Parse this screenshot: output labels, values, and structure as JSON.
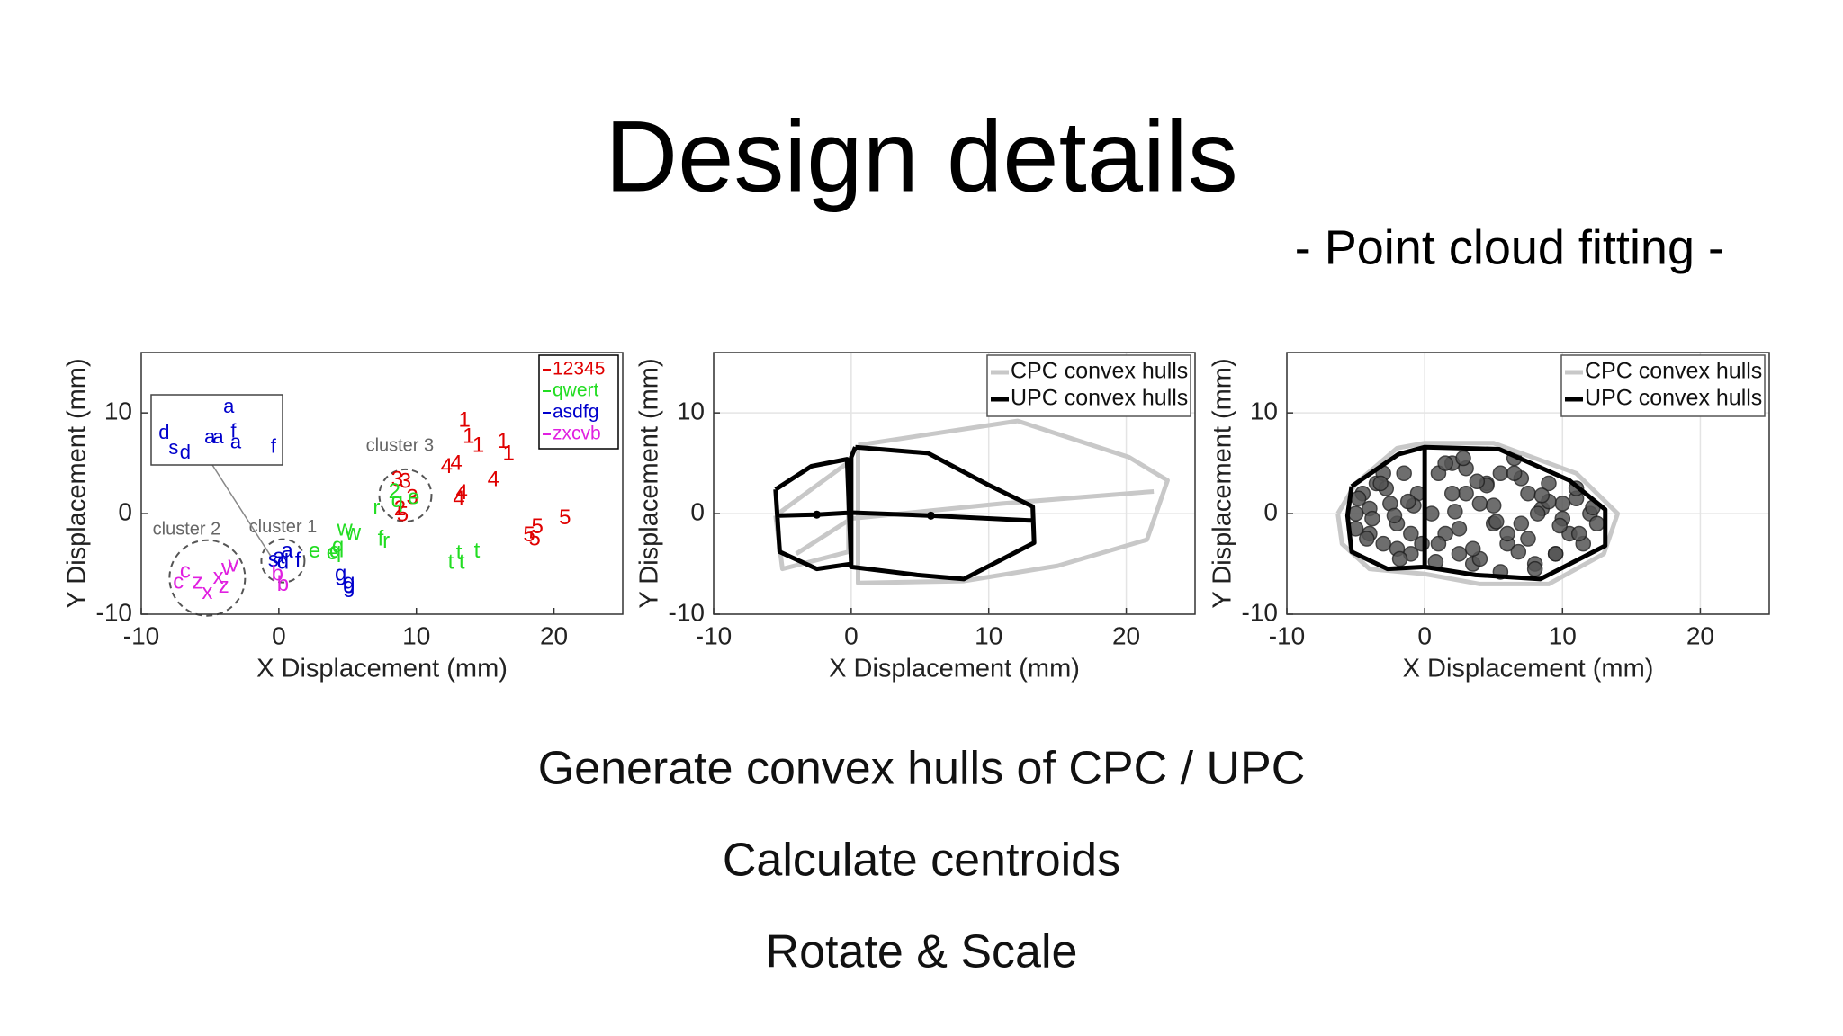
{
  "title": "Design details",
  "subtitle": "- Point cloud fitting -",
  "bullets": [
    "Generate convex hulls of CPC / UPC",
    "Calculate centroids",
    "Rotate & Scale"
  ],
  "chart_data": [
    {
      "type": "text-scatter",
      "xlabel": "X Displacement (mm)",
      "ylabel": "Y Displacement (mm)",
      "xlim": [
        -10,
        25
      ],
      "ylim": [
        -10,
        16
      ],
      "xticks": [
        -10,
        0,
        10,
        20
      ],
      "yticks": [
        -10,
        0,
        10
      ],
      "grid": false,
      "legend": "upper right",
      "series": [
        {
          "name": "12345",
          "color": "#e00000",
          "x": [
            13.5,
            13.8,
            14.5,
            16.3,
            16.7,
            12.2,
            12.9,
            15.6,
            13.3,
            13.1,
            18.8,
            20.8,
            18.2,
            18.6,
            8.6,
            9.2,
            8.8,
            9.7,
            9.0
          ],
          "y": [
            9.2,
            7.6,
            6.7,
            7.1,
            5.9,
            4.6,
            4.9,
            3.3,
            2.0,
            1.4,
            -1.4,
            -0.5,
            -2.2,
            -2.6,
            3.3,
            3.1,
            0.4,
            1.5,
            -0.2
          ],
          "labels": [
            "1",
            "1",
            "1",
            "1",
            "1",
            "4",
            "4",
            "4",
            "4",
            "4",
            "5",
            "5",
            "5",
            "5",
            "3",
            "3",
            "2",
            "3",
            "5"
          ]
        },
        {
          "name": "qwert",
          "color": "#22dd22",
          "x": [
            4.1,
            4.3,
            4.8,
            5.4,
            2.6,
            3.9,
            7.1,
            7.8,
            7.4,
            12.5,
            13.1,
            14.4,
            13.3,
            8.4,
            9.8,
            8.6
          ],
          "y": [
            -3.8,
            -3.3,
            -1.6,
            -2.0,
            -3.8,
            -4.0,
            0.5,
            -2.8,
            -2.6,
            -4.9,
            -4.0,
            -3.8,
            -4.9,
            2.1,
            1.5,
            1.2
          ],
          "labels": [
            "q",
            "q",
            "w",
            "w",
            "e",
            "e",
            "r",
            "r",
            "f",
            "t",
            "t",
            "t",
            "t",
            "2",
            "e",
            "q"
          ]
        },
        {
          "name": "asdfg",
          "color": "#0000cc",
          "x": [
            0.0,
            -0.4,
            0.3,
            1.4,
            4.5,
            5.1,
            5.1,
            0.6
          ],
          "y": [
            -4.4,
            -4.7,
            -4.9,
            -4.8,
            -6.1,
            -6.9,
            -7.3,
            -3.8
          ],
          "labels": [
            "a",
            "s",
            "d",
            "f",
            "g",
            "g",
            "g",
            "a"
          ]
        },
        {
          "name": "zxcvb",
          "color": "#e020e0",
          "x": [
            -6.8,
            -7.3,
            -5.9,
            -4.0,
            -5.2,
            -4.4,
            -3.8,
            -3.3,
            -0.1,
            0.3
          ],
          "y": [
            -5.8,
            -6.9,
            -6.9,
            -7.3,
            -7.9,
            -6.4,
            -5.5,
            -5.2,
            -6.1,
            -7.1
          ],
          "labels": [
            "c",
            "c",
            "z",
            "z",
            "x",
            "x",
            "v",
            "v",
            "b",
            "b"
          ]
        }
      ],
      "annotations": [
        "cluster 1",
        "cluster 2",
        "cluster 3"
      ],
      "inset": {
        "color": "#0000cc",
        "labels": [
          "a",
          "f",
          "a",
          "d",
          "s",
          "d",
          "a",
          "a",
          "f"
        ]
      }
    },
    {
      "type": "line",
      "xlabel": "X Displacement (mm)",
      "ylabel": "Y Displacement (mm)",
      "xlim": [
        -10,
        25
      ],
      "ylim": [
        -10,
        16
      ],
      "xticks": [
        -10,
        0,
        10,
        20
      ],
      "yticks": [
        -10,
        0,
        10
      ],
      "grid": true,
      "legend": "upper right",
      "series": [
        {
          "name": "CPC convex hulls",
          "color": "#c8c8c8",
          "x": [
            0.5,
            12.1,
            20.2,
            23.0,
            21.5,
            15.0,
            8.2,
            0.5,
            0.5,
            null,
            -5.5,
            -0.2,
            -0.2,
            -5.0,
            -5.5,
            null,
            -4,
            0,
            11,
            22
          ],
          "y": [
            6.8,
            9.2,
            5.6,
            3.3,
            -2.6,
            -5.2,
            -6.7,
            -6.9,
            6.8,
            null,
            -0.2,
            5.1,
            -3.8,
            -5.5,
            -0.2,
            null,
            -4,
            -0.5,
            1,
            2.2
          ]
        },
        {
          "name": "UPC convex hulls",
          "color": "#000000",
          "x": [
            -5.5,
            -2.9,
            -0.3,
            0,
            -2.5,
            -5.2,
            -5.5,
            null,
            0.3,
            5.6,
            9.9,
            13.2,
            13.3,
            8.2,
            4.8,
            0,
            0,
            0.3,
            null,
            -5.5,
            -2.5,
            0,
            5.8,
            13.2
          ],
          "y": [
            2.4,
            4.7,
            5.4,
            -5,
            -5.5,
            -3.8,
            2.4,
            null,
            6.6,
            6.0,
            2.9,
            0.7,
            -2.9,
            -6.5,
            -6.1,
            -5.3,
            5.6,
            6.6,
            null,
            -0.2,
            -0.1,
            0.1,
            -0.2,
            -0.7
          ]
        }
      ],
      "centroids": {
        "x": [
          -2.5,
          5.8
        ],
        "y": [
          -0.1,
          -0.2
        ]
      }
    },
    {
      "type": "line",
      "xlabel": "X Displacement (mm)",
      "ylabel": "Y Displacement (mm)",
      "xlim": [
        -10,
        25
      ],
      "ylim": [
        -10,
        16
      ],
      "xticks": [
        -10,
        0,
        10,
        20
      ],
      "yticks": [
        -10,
        0,
        10
      ],
      "grid": true,
      "legend": "upper right",
      "points": {
        "color": "#555555",
        "x": [
          -5,
          -4.5,
          -4,
          -3.5,
          -3,
          -2.5,
          -2,
          -1.5,
          -1,
          -0.5,
          -5,
          -4,
          -3,
          -2,
          -1,
          -4.8,
          -3.8,
          -2.8,
          -1.8,
          -0.8,
          -4.2,
          -3.2,
          -2.2,
          -1.2,
          -0.2,
          0.5,
          1,
          1.5,
          2,
          2.5,
          3,
          3.5,
          4,
          4.5,
          5,
          5.5,
          6,
          6.5,
          7,
          7.5,
          8,
          8.5,
          9,
          9.5,
          10,
          10.5,
          11,
          11.5,
          12,
          12.5,
          1,
          2,
          3,
          4,
          5,
          6,
          7,
          8,
          9,
          10,
          1.5,
          2.5,
          3.5,
          4.5,
          5.5,
          6.5,
          7.5,
          8.5,
          9.5,
          11,
          0.8,
          2.2,
          3.8,
          5.2,
          6.8,
          8.2,
          9.8,
          11.2,
          12.2,
          2.8
        ],
        "y": [
          0,
          2,
          -2,
          3,
          -3,
          1,
          -1,
          4,
          -4,
          2,
          -1.5,
          0.5,
          4,
          -3.5,
          -2,
          1.5,
          -0.5,
          2.5,
          -4.5,
          0.8,
          -2.5,
          3,
          -0.2,
          1.2,
          -3,
          0,
          4,
          -2,
          5,
          -4,
          2,
          -5,
          1,
          3,
          -1,
          4,
          -3,
          5.5,
          -1,
          2,
          -5,
          0.5,
          3,
          -4,
          1,
          -2,
          1.5,
          -3,
          0,
          -1,
          -3,
          2,
          4.5,
          -4.5,
          0.8,
          -2,
          3.5,
          -5.5,
          1.2,
          -0.5,
          5,
          -1.5,
          -3.5,
          2.8,
          -5.8,
          4,
          -2.5,
          1.8,
          -4,
          2.5,
          -4.8,
          0.2,
          3.2,
          -0.8,
          -3.8,
          0,
          -1.2,
          -2,
          0.6,
          5.5
        ]
      },
      "series": [
        {
          "name": "CPC convex hulls",
          "color": "#c8c8c8",
          "x": [
            -6.3,
            -5,
            -2,
            0,
            5,
            11,
            14,
            13,
            9,
            4,
            0,
            -4,
            -6,
            -6.3
          ],
          "y": [
            0,
            3,
            6.5,
            7,
            7,
            4,
            0,
            -4,
            -7,
            -7,
            -6,
            -5.5,
            -3,
            0
          ]
        },
        {
          "name": "UPC convex hulls",
          "color": "#000000",
          "x": [
            -5.3,
            -1.9,
            0,
            0,
            -2.7,
            -5.3,
            -5.6,
            -5.3,
            null,
            0,
            5.4,
            10.5,
            13.1,
            13.1,
            8.4,
            3.7,
            0
          ],
          "y": [
            2.7,
            5.9,
            6.6,
            -5.3,
            -5.5,
            -3.8,
            -0.2,
            2.7,
            null,
            6.6,
            6.4,
            3.3,
            0.4,
            -3.2,
            -6.5,
            -6.1,
            -5.3
          ]
        }
      ]
    }
  ]
}
